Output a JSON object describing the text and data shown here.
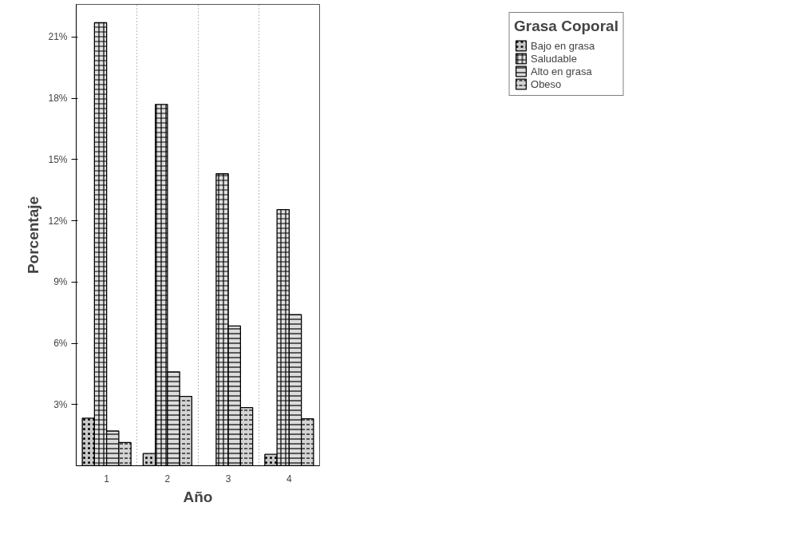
{
  "chart_data": {
    "type": "bar",
    "xlabel": "Año",
    "ylabel": "Porcentaje",
    "legend_title": "Grasa Coporal",
    "categories": [
      "1",
      "2",
      "3",
      "4"
    ],
    "series": [
      {
        "name": "Bajo en grasa",
        "color": "#c8c8c8",
        "values": [
          2.33,
          0.6,
          null,
          0.56
        ]
      },
      {
        "name": "Saludable",
        "color": "#e0e0e0",
        "values": [
          21.7,
          17.7,
          14.3,
          12.55
        ]
      },
      {
        "name": "Alto en grasa",
        "color": "#dcdcdc",
        "values": [
          1.7,
          4.6,
          6.85,
          7.4
        ]
      },
      {
        "name": "Obeso",
        "color": "#d4d4d4",
        "values": [
          1.14,
          3.4,
          2.85,
          2.3
        ]
      }
    ],
    "ylim": [
      0,
      22.6
    ],
    "yticks": [
      {
        "value": 3,
        "label": "3%"
      },
      {
        "value": 6,
        "label": "6%"
      },
      {
        "value": 9,
        "label": "9%"
      },
      {
        "value": 12,
        "label": "12%"
      },
      {
        "value": 15,
        "label": "15%"
      },
      {
        "value": 18,
        "label": "18%"
      },
      {
        "value": 21,
        "label": "21%"
      }
    ],
    "grid": "x",
    "legend": "top right"
  }
}
